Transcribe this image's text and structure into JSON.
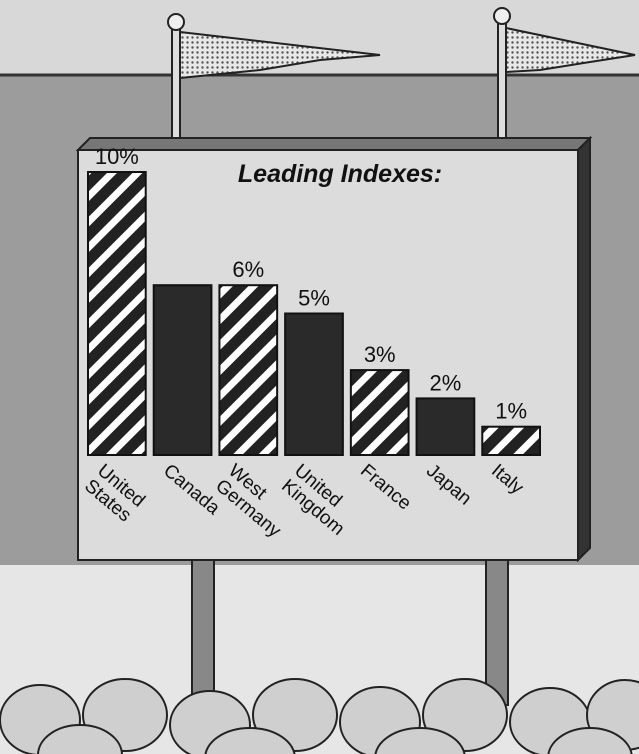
{
  "chart_data": {
    "type": "bar",
    "title": "Leading Indexes:",
    "categories": [
      "United States",
      "Canada",
      "West Germany",
      "United Kingdom",
      "France",
      "Japan",
      "Italy"
    ],
    "values": [
      10,
      6,
      6,
      5,
      3,
      2,
      1
    ],
    "value_labels": [
      "10%",
      null,
      "6%",
      "5%",
      "3%",
      "2%",
      "1%"
    ]
  }
}
